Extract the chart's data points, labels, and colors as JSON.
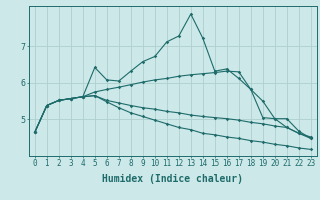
{
  "xlabel": "Humidex (Indice chaleur)",
  "background_color": "#cde8e8",
  "grid_color": "#aed0d0",
  "line_color": "#1e6b6b",
  "x_values": [
    0,
    1,
    2,
    3,
    4,
    5,
    6,
    7,
    8,
    9,
    10,
    11,
    12,
    13,
    14,
    15,
    16,
    17,
    18,
    19,
    20,
    21,
    22,
    23
  ],
  "series1": [
    4.65,
    5.38,
    5.52,
    5.57,
    5.62,
    6.42,
    6.08,
    6.05,
    6.32,
    6.58,
    6.72,
    7.12,
    7.28,
    7.88,
    7.22,
    6.32,
    6.38,
    6.12,
    5.82,
    5.05,
    5.02,
    4.78,
    4.62,
    4.52
  ],
  "series2": [
    4.65,
    5.38,
    5.52,
    5.57,
    5.62,
    5.75,
    5.82,
    5.88,
    5.95,
    6.02,
    6.08,
    6.12,
    6.18,
    6.22,
    6.25,
    6.28,
    6.32,
    6.3,
    5.82,
    5.5,
    5.02,
    5.02,
    4.68,
    4.48
  ],
  "series3": [
    4.65,
    5.38,
    5.52,
    5.57,
    5.62,
    5.65,
    5.52,
    5.45,
    5.38,
    5.32,
    5.28,
    5.22,
    5.18,
    5.12,
    5.08,
    5.05,
    5.02,
    4.98,
    4.92,
    4.88,
    4.82,
    4.78,
    4.62,
    4.48
  ],
  "series4": [
    4.65,
    5.38,
    5.52,
    5.57,
    5.62,
    5.65,
    5.48,
    5.32,
    5.18,
    5.08,
    4.98,
    4.88,
    4.78,
    4.72,
    4.62,
    4.58,
    4.52,
    4.48,
    4.42,
    4.38,
    4.32,
    4.28,
    4.22,
    4.18
  ],
  "ylim": [
    4.0,
    8.1
  ],
  "yticks": [
    5,
    6,
    7
  ],
  "xlim": [
    -0.5,
    23.5
  ],
  "tick_fontsize": 5.5,
  "label_fontsize": 7
}
